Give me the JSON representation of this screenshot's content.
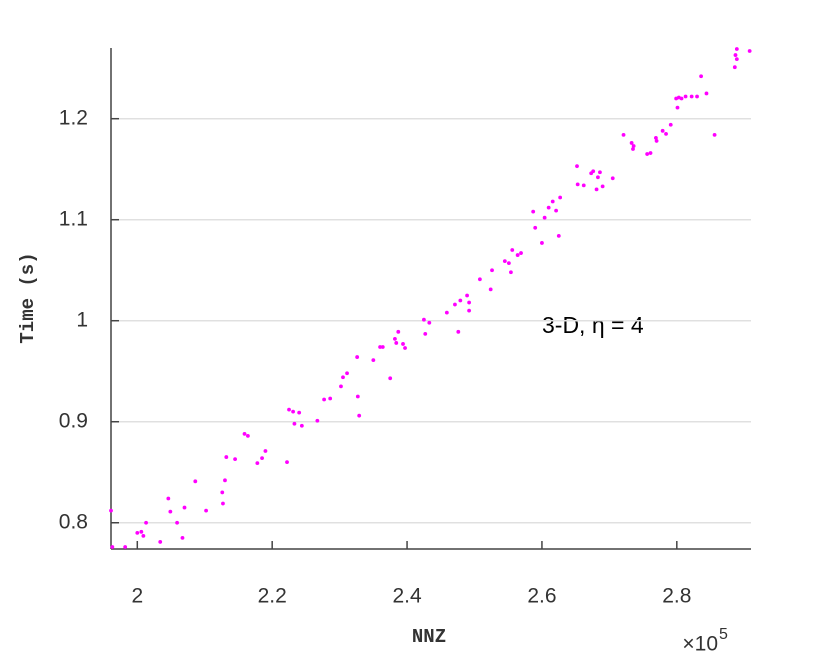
{
  "chart_data": {
    "type": "scatter",
    "xlabel": "NNZ",
    "ylabel": "Time (s)",
    "x_multiplier": "×10",
    "x_multiplier_exponent": "5",
    "annotation": "3-D, η = 4",
    "color": "#ff00ff",
    "grid": true,
    "xlim": [
      1.961,
      2.91
    ],
    "ylim": [
      0.774,
      1.27
    ],
    "xticks": [
      2,
      2.2,
      2.4,
      2.6,
      2.8
    ],
    "yticks": [
      0.8,
      0.9,
      1,
      1.1,
      1.2
    ],
    "x": [
      1.961,
      1.963,
      1.982,
      2.0,
      2.006,
      2.009,
      2.013,
      2.034,
      2.046,
      2.049,
      2.059,
      2.067,
      2.07,
      2.086,
      2.102,
      2.126,
      2.127,
      2.13,
      2.132,
      2.145,
      2.159,
      2.164,
      2.178,
      2.185,
      2.19,
      2.222,
      2.225,
      2.231,
      2.233,
      2.24,
      2.244,
      2.267,
      2.277,
      2.286,
      2.302,
      2.305,
      2.311,
      2.326,
      2.327,
      2.329,
      2.35,
      2.36,
      2.364,
      2.375,
      2.382,
      2.384,
      2.387,
      2.394,
      2.397,
      2.425,
      2.427,
      2.433,
      2.459,
      2.471,
      2.476,
      2.479,
      2.489,
      2.492,
      2.492,
      2.508,
      2.524,
      2.526,
      2.545,
      2.551,
      2.554,
      2.556,
      2.564,
      2.569,
      2.587,
      2.59,
      2.6,
      2.604,
      2.61,
      2.616,
      2.621,
      2.625,
      2.627,
      2.652,
      2.653,
      2.662,
      2.673,
      2.676,
      2.681,
      2.683,
      2.686,
      2.69,
      2.705,
      2.721,
      2.733,
      2.735,
      2.736,
      2.756,
      2.761,
      2.769,
      2.77,
      2.779,
      2.784,
      2.791,
      2.799,
      2.801,
      2.803,
      2.807,
      2.813,
      2.822,
      2.83,
      2.836,
      2.844,
      2.856,
      2.886,
      2.887,
      2.889,
      2.889,
      2.908
    ],
    "y": [
      0.812,
      0.776,
      0.776,
      0.79,
      0.791,
      0.787,
      0.8,
      0.781,
      0.824,
      0.811,
      0.8,
      0.785,
      0.815,
      0.841,
      0.812,
      0.83,
      0.819,
      0.842,
      0.865,
      0.863,
      0.888,
      0.886,
      0.859,
      0.864,
      0.871,
      0.86,
      0.912,
      0.91,
      0.898,
      0.909,
      0.896,
      0.901,
      0.922,
      0.923,
      0.935,
      0.944,
      0.948,
      0.964,
      0.925,
      0.906,
      0.961,
      0.974,
      0.974,
      0.943,
      0.982,
      0.978,
      0.989,
      0.977,
      0.973,
      1.001,
      0.987,
      0.998,
      1.008,
      1.016,
      0.989,
      1.02,
      1.025,
      1.018,
      1.01,
      1.041,
      1.031,
      1.05,
      1.059,
      1.057,
      1.048,
      1.07,
      1.065,
      1.067,
      1.108,
      1.092,
      1.077,
      1.102,
      1.112,
      1.118,
      1.109,
      1.084,
      1.122,
      1.153,
      1.135,
      1.134,
      1.146,
      1.148,
      1.13,
      1.142,
      1.147,
      1.133,
      1.141,
      1.184,
      1.176,
      1.17,
      1.173,
      1.165,
      1.166,
      1.181,
      1.178,
      1.188,
      1.185,
      1.194,
      1.22,
      1.211,
      1.221,
      1.22,
      1.222,
      1.222,
      1.222,
      1.242,
      1.225,
      1.184,
      1.251,
      1.263,
      1.269,
      1.259,
      1.267
    ]
  }
}
